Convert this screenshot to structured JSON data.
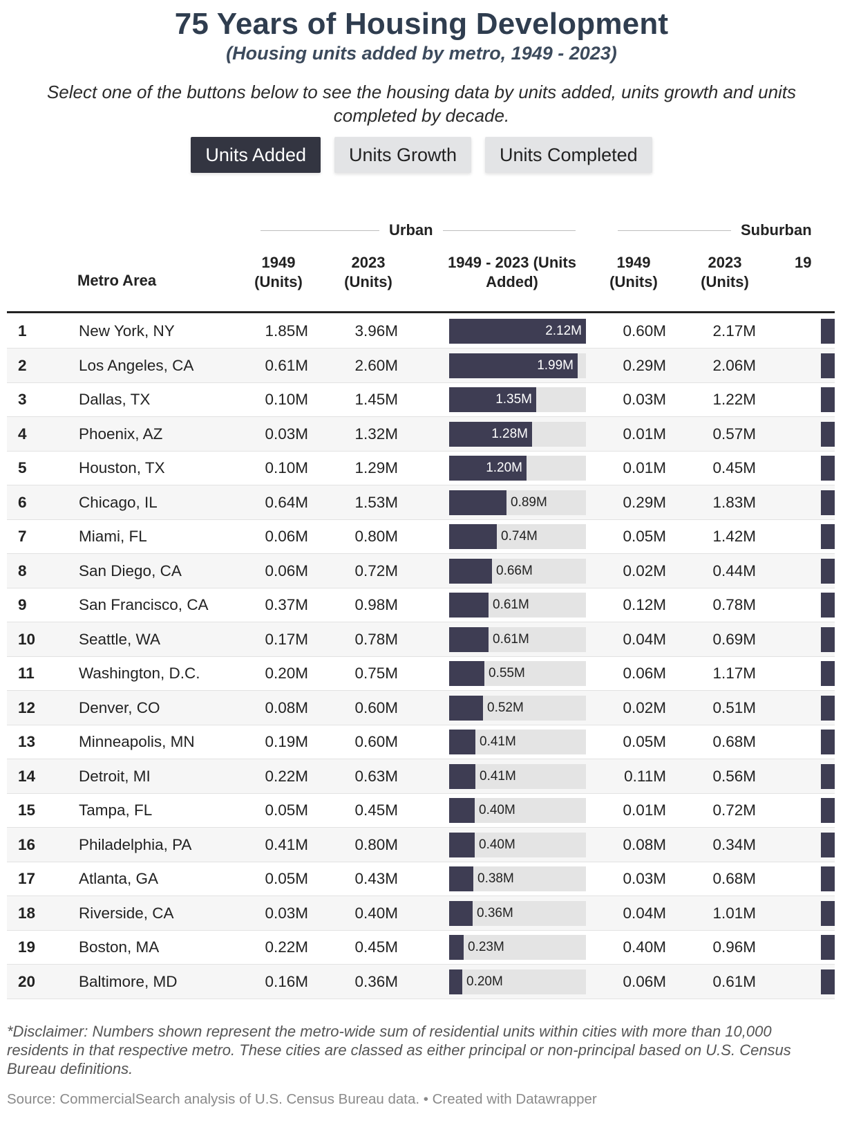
{
  "title": "75 Years of Housing Development",
  "subtitle": "(Housing units added by metro, 1949 - 2023)",
  "intro": "Select one of the buttons below to see the housing data by units added, units growth and units completed by decade.",
  "buttons": [
    {
      "label": "Units Added",
      "active": true
    },
    {
      "label": "Units Growth",
      "active": false
    },
    {
      "label": "Units Completed",
      "active": false
    }
  ],
  "groups": {
    "urban": "Urban",
    "suburban": "Suburban"
  },
  "columns": {
    "metro": "Metro Area",
    "urban_1949": "1949 (Units)",
    "urban_2023": "2023 (Units)",
    "urban_added": "1949 - 2023 (Units Added)",
    "suburban_1949": "1949 (Units)",
    "suburban_2023": "2023 (Units)",
    "suburban_added_partial": "19"
  },
  "colors": {
    "bar": "#3e3d53",
    "bar_bg": "#e4e4e4",
    "active_button": "#333541",
    "title": "#2f3d4f"
  },
  "chart_data": {
    "type": "table",
    "bar_max": 2.12,
    "rows": [
      {
        "rank": "1",
        "metro": "New York, NY",
        "urban_1949": "1.85M",
        "urban_2023": "3.96M",
        "added": 2.12,
        "added_label": "2.12M",
        "suburban_1949": "0.60M",
        "suburban_2023": "2.17M"
      },
      {
        "rank": "2",
        "metro": "Los Angeles, CA",
        "urban_1949": "0.61M",
        "urban_2023": "2.60M",
        "added": 1.99,
        "added_label": "1.99M",
        "suburban_1949": "0.29M",
        "suburban_2023": "2.06M"
      },
      {
        "rank": "3",
        "metro": "Dallas, TX",
        "urban_1949": "0.10M",
        "urban_2023": "1.45M",
        "added": 1.35,
        "added_label": "1.35M",
        "suburban_1949": "0.03M",
        "suburban_2023": "1.22M"
      },
      {
        "rank": "4",
        "metro": "Phoenix, AZ",
        "urban_1949": "0.03M",
        "urban_2023": "1.32M",
        "added": 1.28,
        "added_label": "1.28M",
        "suburban_1949": "0.01M",
        "suburban_2023": "0.57M"
      },
      {
        "rank": "5",
        "metro": "Houston, TX",
        "urban_1949": "0.10M",
        "urban_2023": "1.29M",
        "added": 1.2,
        "added_label": "1.20M",
        "suburban_1949": "0.01M",
        "suburban_2023": "0.45M"
      },
      {
        "rank": "6",
        "metro": "Chicago, IL",
        "urban_1949": "0.64M",
        "urban_2023": "1.53M",
        "added": 0.89,
        "added_label": "0.89M",
        "suburban_1949": "0.29M",
        "suburban_2023": "1.83M"
      },
      {
        "rank": "7",
        "metro": "Miami, FL",
        "urban_1949": "0.06M",
        "urban_2023": "0.80M",
        "added": 0.74,
        "added_label": "0.74M",
        "suburban_1949": "0.05M",
        "suburban_2023": "1.42M"
      },
      {
        "rank": "8",
        "metro": "San Diego, CA",
        "urban_1949": "0.06M",
        "urban_2023": "0.72M",
        "added": 0.66,
        "added_label": "0.66M",
        "suburban_1949": "0.02M",
        "suburban_2023": "0.44M"
      },
      {
        "rank": "9",
        "metro": "San Francisco, CA",
        "urban_1949": "0.37M",
        "urban_2023": "0.98M",
        "added": 0.61,
        "added_label": "0.61M",
        "suburban_1949": "0.12M",
        "suburban_2023": "0.78M"
      },
      {
        "rank": "10",
        "metro": "Seattle, WA",
        "urban_1949": "0.17M",
        "urban_2023": "0.78M",
        "added": 0.61,
        "added_label": "0.61M",
        "suburban_1949": "0.04M",
        "suburban_2023": "0.69M"
      },
      {
        "rank": "11",
        "metro": "Washington, D.C.",
        "urban_1949": "0.20M",
        "urban_2023": "0.75M",
        "added": 0.55,
        "added_label": "0.55M",
        "suburban_1949": "0.06M",
        "suburban_2023": "1.17M"
      },
      {
        "rank": "12",
        "metro": "Denver, CO",
        "urban_1949": "0.08M",
        "urban_2023": "0.60M",
        "added": 0.52,
        "added_label": "0.52M",
        "suburban_1949": "0.02M",
        "suburban_2023": "0.51M"
      },
      {
        "rank": "13",
        "metro": "Minneapolis, MN",
        "urban_1949": "0.19M",
        "urban_2023": "0.60M",
        "added": 0.41,
        "added_label": "0.41M",
        "suburban_1949": "0.05M",
        "suburban_2023": "0.68M"
      },
      {
        "rank": "14",
        "metro": "Detroit, MI",
        "urban_1949": "0.22M",
        "urban_2023": "0.63M",
        "added": 0.41,
        "added_label": "0.41M",
        "suburban_1949": "0.11M",
        "suburban_2023": "0.56M"
      },
      {
        "rank": "15",
        "metro": "Tampa, FL",
        "urban_1949": "0.05M",
        "urban_2023": "0.45M",
        "added": 0.4,
        "added_label": "0.40M",
        "suburban_1949": "0.01M",
        "suburban_2023": "0.72M"
      },
      {
        "rank": "16",
        "metro": "Philadelphia, PA",
        "urban_1949": "0.41M",
        "urban_2023": "0.80M",
        "added": 0.4,
        "added_label": "0.40M",
        "suburban_1949": "0.08M",
        "suburban_2023": "0.34M"
      },
      {
        "rank": "17",
        "metro": "Atlanta, GA",
        "urban_1949": "0.05M",
        "urban_2023": "0.43M",
        "added": 0.38,
        "added_label": "0.38M",
        "suburban_1949": "0.03M",
        "suburban_2023": "0.68M"
      },
      {
        "rank": "18",
        "metro": "Riverside, CA",
        "urban_1949": "0.03M",
        "urban_2023": "0.40M",
        "added": 0.36,
        "added_label": "0.36M",
        "suburban_1949": "0.04M",
        "suburban_2023": "1.01M"
      },
      {
        "rank": "19",
        "metro": "Boston, MA",
        "urban_1949": "0.22M",
        "urban_2023": "0.45M",
        "added": 0.23,
        "added_label": "0.23M",
        "suburban_1949": "0.40M",
        "suburban_2023": "0.96M"
      },
      {
        "rank": "20",
        "metro": "Baltimore, MD",
        "urban_1949": "0.16M",
        "urban_2023": "0.36M",
        "added": 0.2,
        "added_label": "0.20M",
        "suburban_1949": "0.06M",
        "suburban_2023": "0.61M"
      }
    ]
  },
  "disclaimer": "*Disclaimer: Numbers shown represent the metro-wide sum of residential units within cities with more than 10,000 residents in that respective metro. These cities are classed as either principal or non-principal based on U.S. Census Bureau definitions.",
  "source": "Source: CommercialSearch analysis of U.S. Census Bureau data. • Created with Datawrapper"
}
